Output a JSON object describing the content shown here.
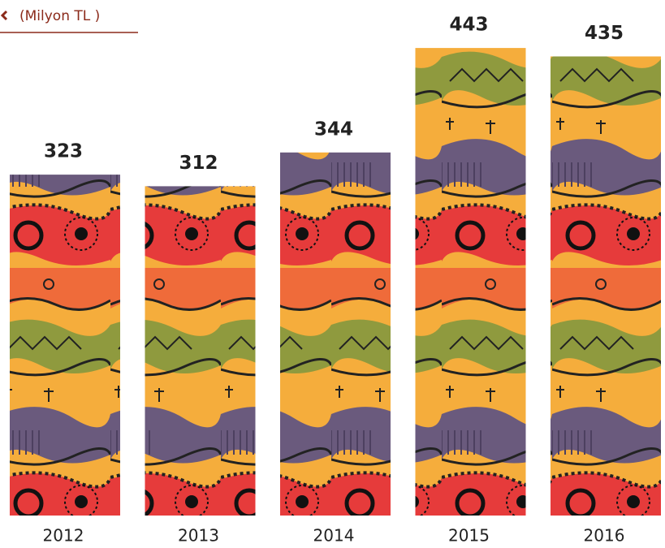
{
  "chart_data": {
    "type": "bar",
    "title": "(Milyon TL )",
    "categories": [
      "2012",
      "2013",
      "2014",
      "2015",
      "2016"
    ],
    "values": [
      323,
      312,
      344,
      443,
      435
    ]
  }
}
